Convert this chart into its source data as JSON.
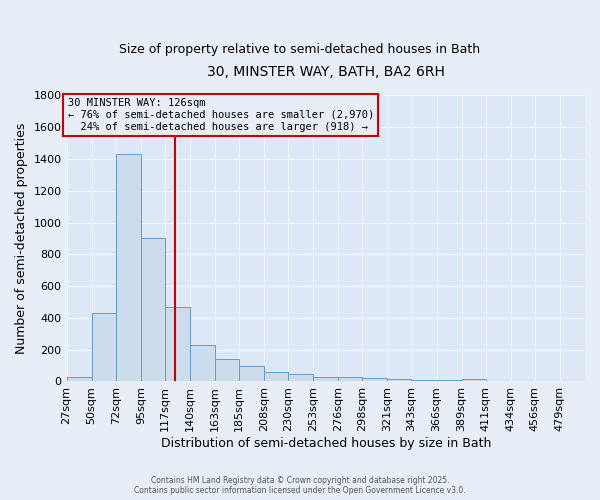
{
  "title": "30, MINSTER WAY, BATH, BA2 6RH",
  "subtitle": "Size of property relative to semi-detached houses in Bath",
  "xlabel": "Distribution of semi-detached houses by size in Bath",
  "ylabel": "Number of semi-detached properties",
  "property_size": 126,
  "property_label": "30 MINSTER WAY: 126sqm",
  "annotation_text_line1": "← 76% of semi-detached houses are smaller (2,970)",
  "annotation_text_line2": "  24% of semi-detached houses are larger (918) →",
  "bin_labels": [
    "27sqm",
    "50sqm",
    "72sqm",
    "95sqm",
    "117sqm",
    "140sqm",
    "163sqm",
    "185sqm",
    "208sqm",
    "230sqm",
    "253sqm",
    "276sqm",
    "298sqm",
    "321sqm",
    "343sqm",
    "366sqm",
    "389sqm",
    "411sqm",
    "434sqm",
    "456sqm",
    "479sqm"
  ],
  "bin_edges": [
    27,
    50,
    72,
    95,
    117,
    140,
    163,
    185,
    208,
    230,
    253,
    276,
    298,
    321,
    343,
    366,
    389,
    411,
    434,
    456,
    479
  ],
  "bar_heights": [
    30,
    430,
    1430,
    900,
    470,
    230,
    140,
    95,
    60,
    50,
    30,
    30,
    20,
    15,
    8,
    8,
    15,
    5,
    5,
    5
  ],
  "bar_color": "#ccdcec",
  "bar_edgecolor": "#6699cc",
  "vline_color": "#cc0000",
  "annotation_box_edgecolor": "#cc0000",
  "background_color": "#e8eef8",
  "plot_bg_color": "#dce8f5",
  "grid_color": "#f0f5ff",
  "ylim": [
    0,
    1800
  ],
  "title_fontsize": 10,
  "subtitle_fontsize": 9,
  "axis_label_fontsize": 9,
  "tick_fontsize": 8,
  "footer_text": "Contains HM Land Registry data © Crown copyright and database right 2025.\nContains public sector information licensed under the Open Government Licence v3.0."
}
